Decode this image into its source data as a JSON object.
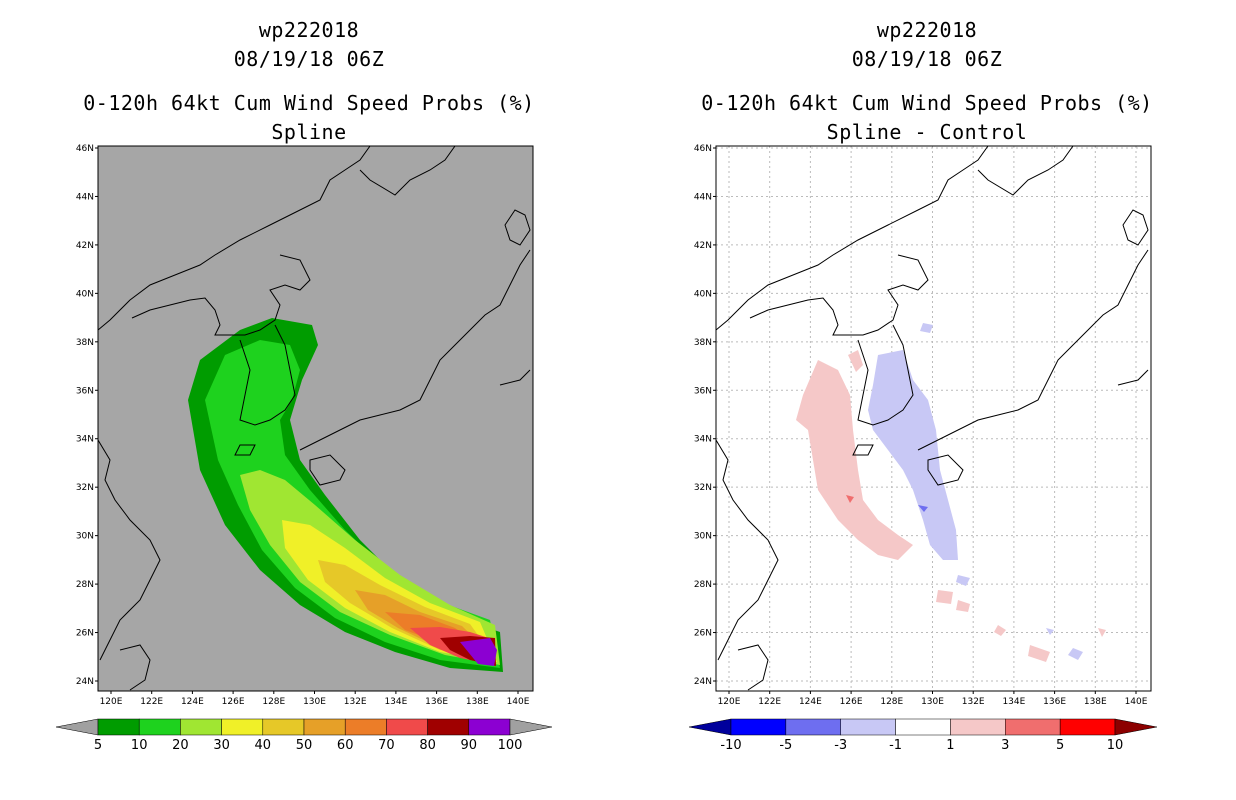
{
  "panels": [
    {
      "storm": "wp222018",
      "datetime": "08/19/18 06Z",
      "product": "0-120h 64kt Cum Wind Speed Probs (%)",
      "subtitle": "Spline",
      "colorbar_labels": [
        "5",
        "10",
        "20",
        "30",
        "40",
        "50",
        "60",
        "70",
        "80",
        "90",
        "100"
      ],
      "colorbar_colors": [
        "#009c00",
        "#1ed21e",
        "#a0e632",
        "#f0f028",
        "#e6c828",
        "#e6a028",
        "#ec7d28",
        "#f04a4a",
        "#a00000",
        "#8c00d2"
      ],
      "under_color": "#a0a0a0",
      "over_color": "#a0a0a0",
      "background": "#a6a6a6"
    },
    {
      "storm": "wp222018",
      "datetime": "08/19/18 06Z",
      "product": "0-120h 64kt Cum Wind Speed Probs (%)",
      "subtitle": "Spline - Control",
      "colorbar_labels": [
        "-10",
        "-5",
        "-3",
        "-1",
        "1",
        "3",
        "5",
        "10"
      ],
      "colorbar_colors": [
        "#0000ff",
        "#6e6ef0",
        "#c8c8f5",
        "#ffffff",
        "#f5c8c8",
        "#f06e6e",
        "#ff0000"
      ],
      "under_color": "#00009c",
      "over_color": "#8c0000",
      "background": "#ffffff"
    }
  ],
  "axes": {
    "lat_labels": [
      "46N",
      "44N",
      "42N",
      "40N",
      "38N",
      "36N",
      "34N",
      "32N",
      "30N",
      "28N",
      "26N",
      "24N"
    ],
    "lon_labels": [
      "120E",
      "122E",
      "124E",
      "126E",
      "128E",
      "130E",
      "132E",
      "134E",
      "136E",
      "138E",
      "140E"
    ]
  }
}
